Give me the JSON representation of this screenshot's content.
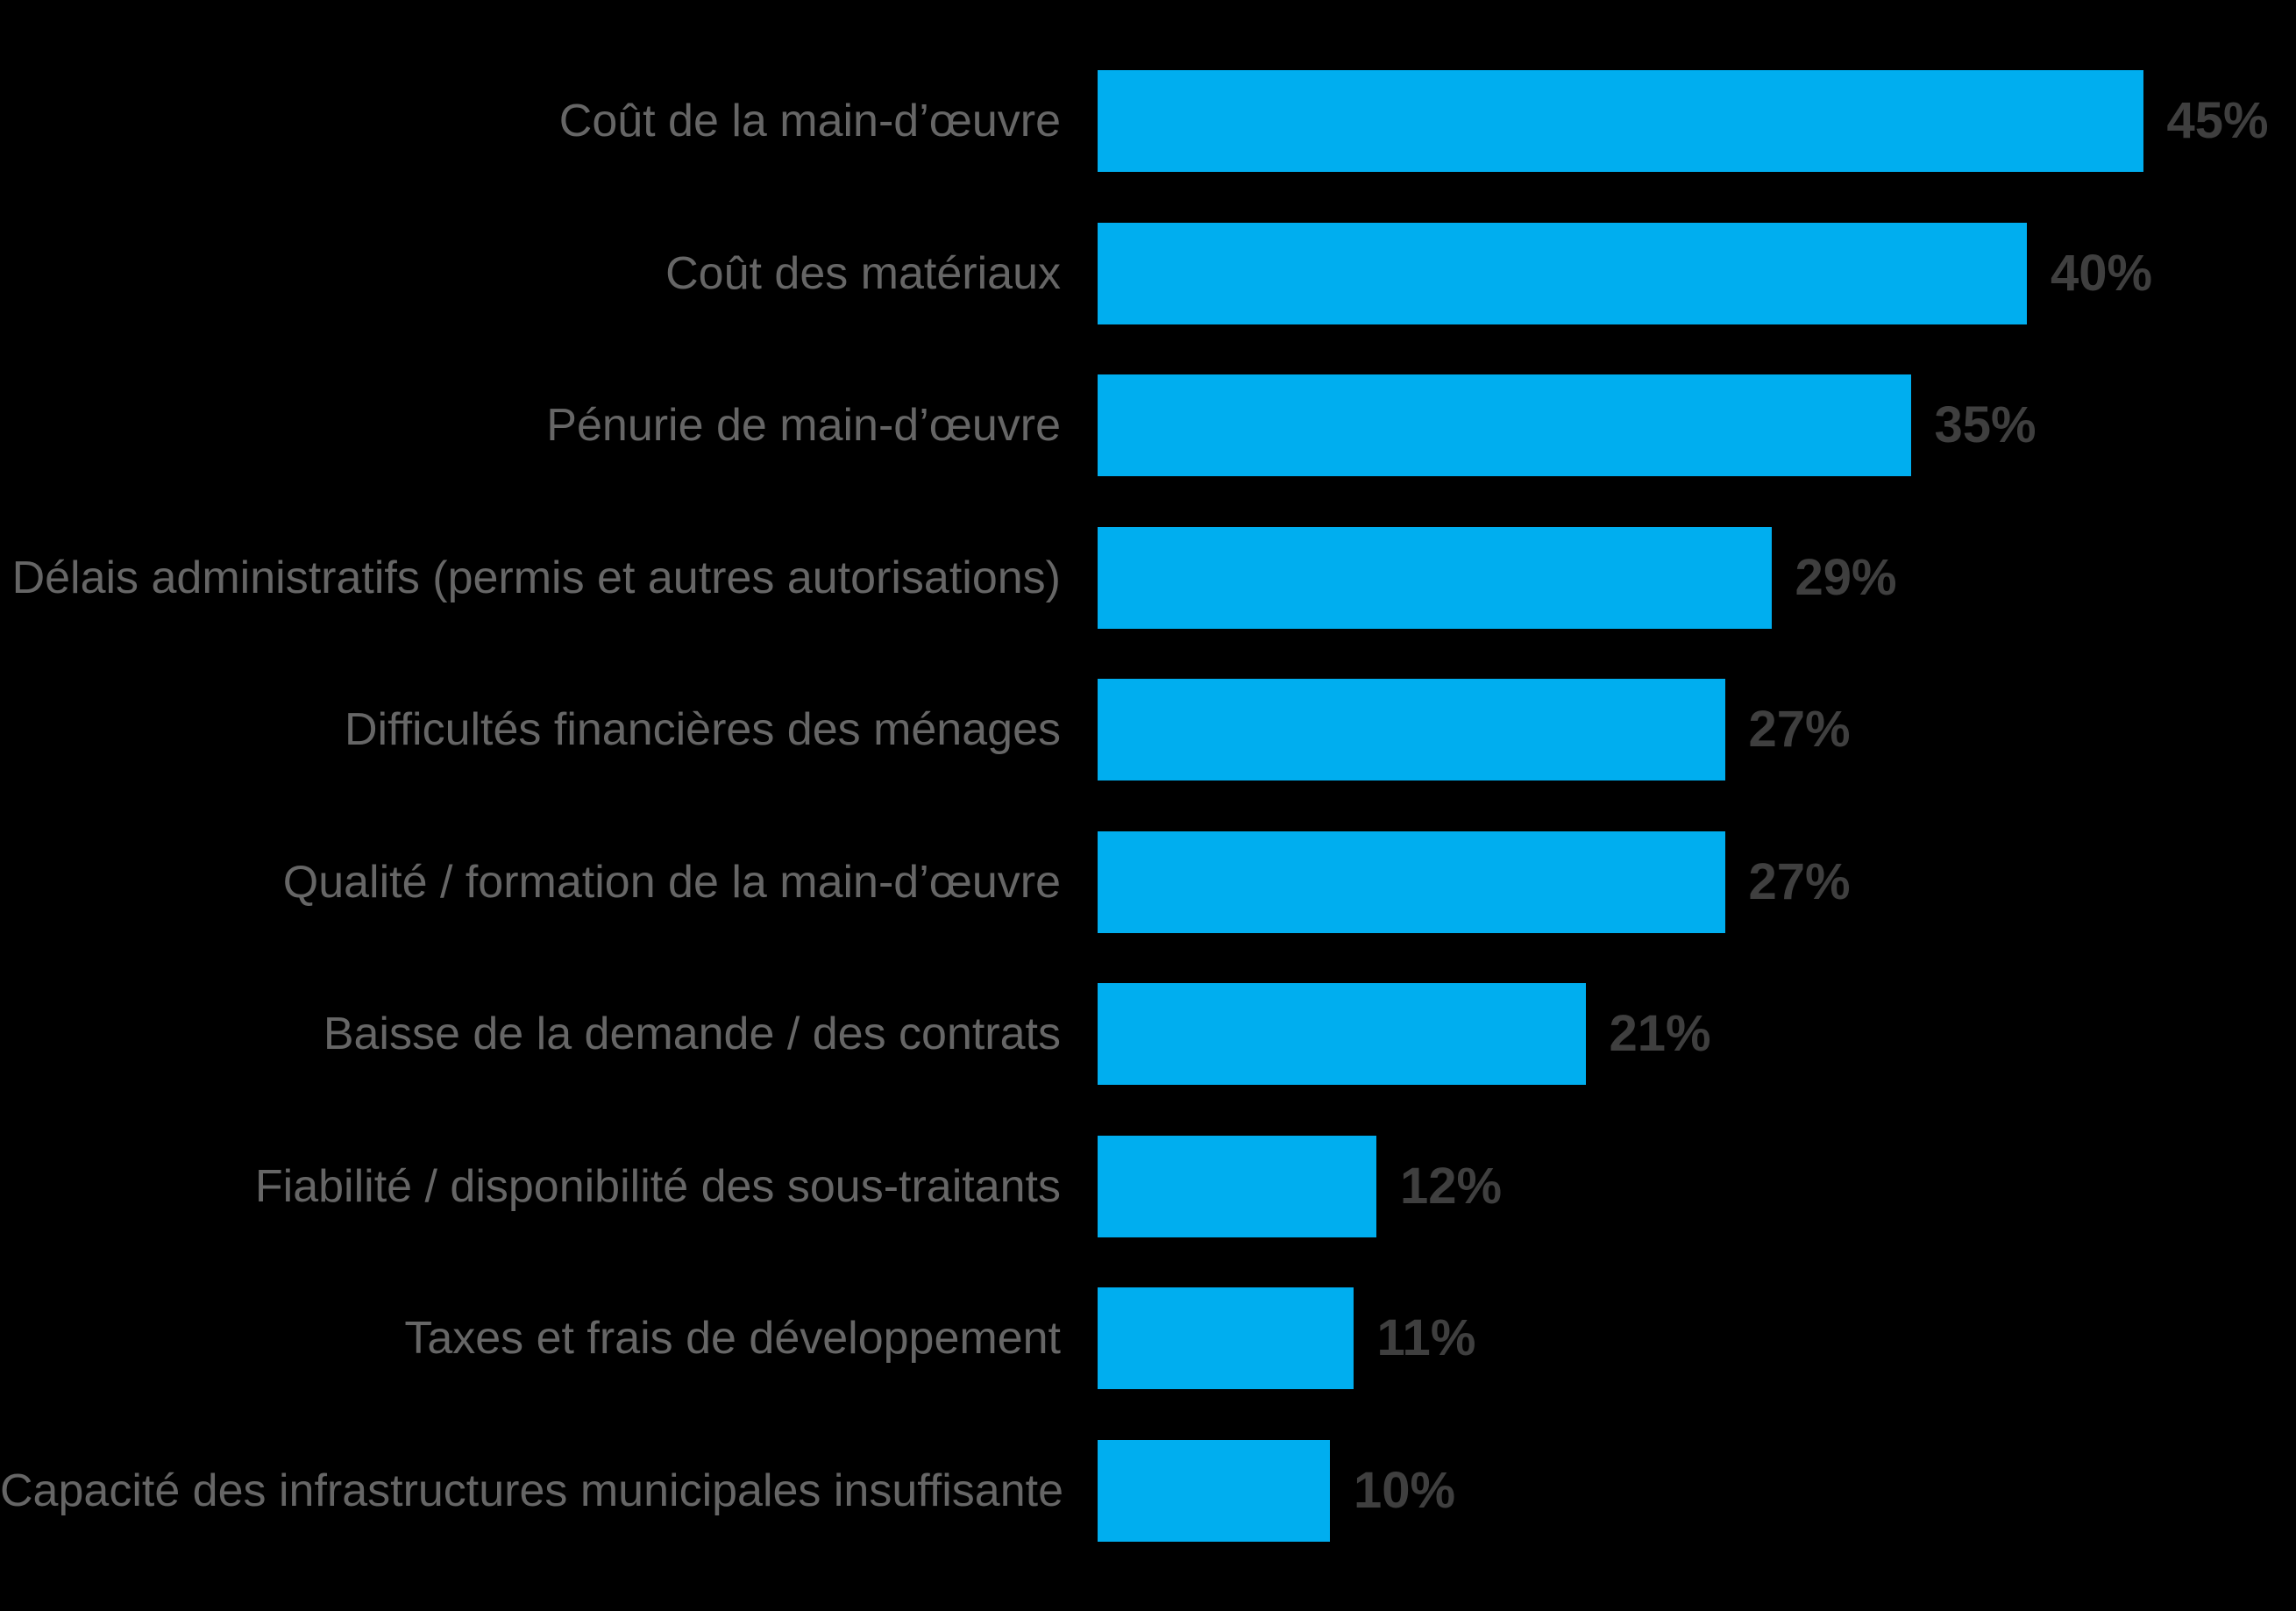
{
  "chart_data": {
    "type": "bar",
    "orientation": "horizontal",
    "title": "",
    "xlabel": "",
    "ylabel": "",
    "xlim": [
      0,
      45
    ],
    "grid": false,
    "legend": false,
    "categories": [
      "Coût de la main-d’œuvre",
      "Coût des matériaux",
      "Pénurie de main-d’œuvre",
      "Délais administratifs (permis et autres autorisations)",
      "Difficultés financières des ménages",
      "Qualité / formation de la main-d’œuvre",
      "Baisse de la demande / des contrats",
      "Fiabilité / disponibilité des sous-traitants",
      "Taxes et frais de développement",
      "Capacité des infrastructures municipales insuffisante"
    ],
    "values": [
      45,
      40,
      35,
      29,
      27,
      27,
      21,
      12,
      11,
      10
    ],
    "value_labels": [
      "45%",
      "40%",
      "35%",
      "29%",
      "27%",
      "27%",
      "21%",
      "12%",
      "11%",
      "10%"
    ]
  },
  "style": {
    "background_color": "#000000",
    "bar_color": "#00AEEF",
    "category_label_color": "#666666",
    "value_label_color": "#3F3F3F"
  }
}
